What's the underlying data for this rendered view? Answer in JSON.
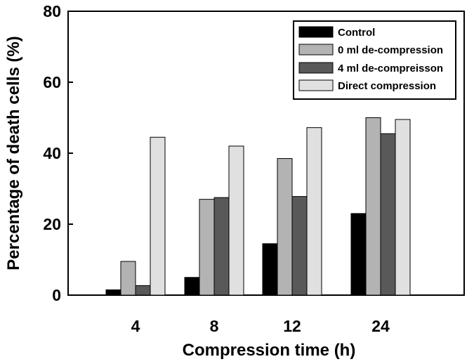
{
  "chart_data": {
    "type": "bar",
    "xlabel": "Compression time (h)",
    "ylabel": "Percentage of death cells (%)",
    "ylim": [
      0,
      80
    ],
    "yticks": [
      0,
      20,
      40,
      60,
      80
    ],
    "categories": [
      "4",
      "8",
      "12",
      "24"
    ],
    "series": [
      {
        "name": "Control",
        "color": "#000000",
        "values": [
          1.5,
          5,
          14.5,
          23
        ]
      },
      {
        "name": "0 ml de-compression",
        "color": "#b3b3b3",
        "values": [
          9.5,
          27,
          38.5,
          50
        ]
      },
      {
        "name": "4 ml de-compreisson",
        "color": "#595959",
        "values": [
          2.7,
          27.5,
          27.8,
          45.5
        ]
      },
      {
        "name": "Direct compression",
        "color": "#e0e0e0",
        "values": [
          44.5,
          42,
          47.2,
          49.5
        ]
      }
    ],
    "legend_position": "top-right",
    "grid": false
  }
}
